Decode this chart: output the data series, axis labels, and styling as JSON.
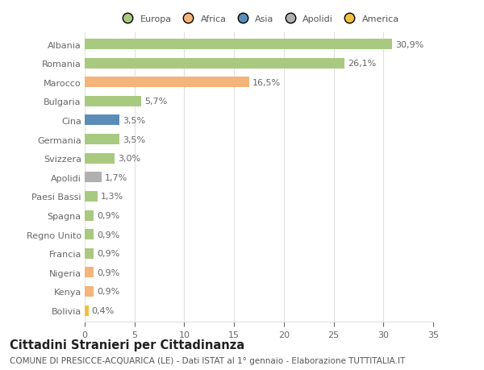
{
  "categories": [
    "Albania",
    "Romania",
    "Marocco",
    "Bulgaria",
    "Cina",
    "Germania",
    "Svizzera",
    "Apolidi",
    "Paesi Bassi",
    "Spagna",
    "Regno Unito",
    "Francia",
    "Nigeria",
    "Kenya",
    "Bolivia"
  ],
  "values": [
    30.9,
    26.1,
    16.5,
    5.7,
    3.5,
    3.5,
    3.0,
    1.7,
    1.3,
    0.9,
    0.9,
    0.9,
    0.9,
    0.9,
    0.4
  ],
  "labels": [
    "30,9%",
    "26,1%",
    "16,5%",
    "5,7%",
    "3,5%",
    "3,5%",
    "3,0%",
    "1,7%",
    "1,3%",
    "0,9%",
    "0,9%",
    "0,9%",
    "0,9%",
    "0,9%",
    "0,4%"
  ],
  "colors": [
    "#a8c97f",
    "#a8c97f",
    "#f4b47a",
    "#a8c97f",
    "#5b8db8",
    "#a8c97f",
    "#a8c97f",
    "#b0b0b0",
    "#a8c97f",
    "#a8c97f",
    "#a8c97f",
    "#a8c97f",
    "#f4b47a",
    "#f4b47a",
    "#f0c040"
  ],
  "legend": [
    {
      "label": "Europa",
      "color": "#a8c97f"
    },
    {
      "label": "Africa",
      "color": "#f4b47a"
    },
    {
      "label": "Asia",
      "color": "#5b8db8"
    },
    {
      "label": "Apolidi",
      "color": "#b0b0b0"
    },
    {
      "label": "America",
      "color": "#f0c040"
    }
  ],
  "title": "Cittadini Stranieri per Cittadinanza",
  "subtitle": "COMUNE DI PRESICCE-ACQUARICA (LE) - Dati ISTAT al 1° gennaio - Elaborazione TUTTITALIA.IT",
  "xlim": [
    0,
    35
  ],
  "xticks": [
    0,
    5,
    10,
    15,
    20,
    25,
    30,
    35
  ],
  "bg_color": "#ffffff",
  "grid_color": "#e0e0e0",
  "bar_height": 0.55,
  "label_fontsize": 8,
  "tick_fontsize": 8,
  "title_fontsize": 10.5,
  "subtitle_fontsize": 7.5
}
